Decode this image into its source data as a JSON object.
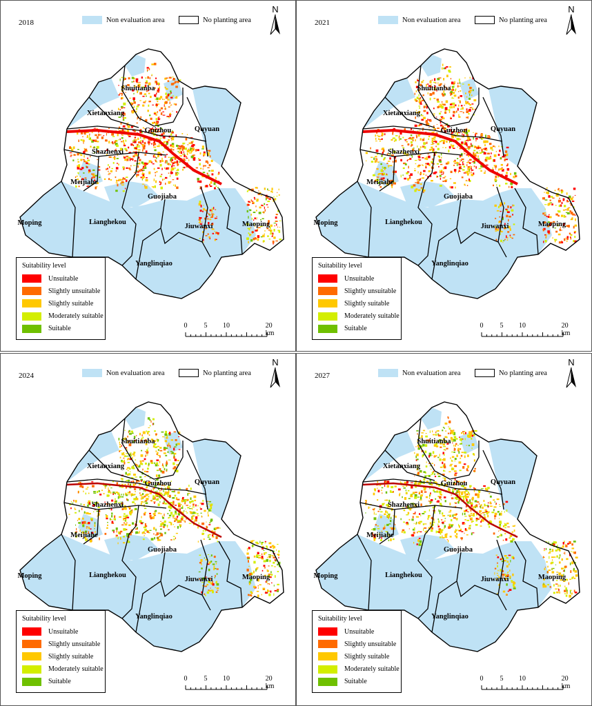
{
  "legend_top": {
    "non_eval": "Non evaluation area",
    "no_plant": "No planting area"
  },
  "north_label": "N",
  "legend_title": "Suitability level",
  "levels": [
    {
      "label": "Unsuitable",
      "color": "#ff0000"
    },
    {
      "label": "Slightly unsuitable",
      "color": "#ff6a00"
    },
    {
      "label": "Slightly suitable",
      "color": "#ffc800"
    },
    {
      "label": "Moderately suitable",
      "color": "#d3ee00"
    },
    {
      "label": "Suitable",
      "color": "#6fc000"
    }
  ],
  "scale_ticks": [
    "0",
    "5",
    "10",
    "20 km"
  ],
  "towns": [
    "Shuitianba",
    "Xietanxiang",
    "Guizhou",
    "Quyuan",
    "Shazhenxi",
    "Meijiahe",
    "Guojiaba",
    "Moping",
    "Lianghekou",
    "Jiuwanxi",
    "Maoping",
    "Yanglinqiao"
  ],
  "panels": [
    {
      "year": "2018",
      "weights": [
        3,
        4,
        3,
        2,
        1
      ]
    },
    {
      "year": "2021",
      "weights": [
        3,
        4,
        4,
        2,
        1
      ]
    },
    {
      "year": "2024",
      "weights": [
        1,
        3,
        4,
        3,
        3
      ]
    },
    {
      "year": "2027",
      "weights": [
        1,
        2,
        5,
        3,
        2
      ]
    }
  ],
  "colors": {
    "non_eval": "#bfe2f5",
    "border": "#000000"
  }
}
